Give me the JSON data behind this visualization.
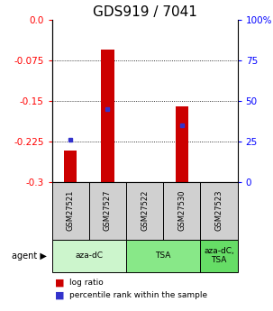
{
  "title": "GDS919 / 7041",
  "samples": [
    "GSM27521",
    "GSM27527",
    "GSM27522",
    "GSM27530",
    "GSM27523"
  ],
  "log_ratio_bottom": [
    -0.3,
    -0.3,
    0.0,
    -0.3,
    0.0
  ],
  "log_ratio_top": [
    -0.242,
    -0.055,
    0.0,
    -0.16,
    0.0
  ],
  "percentile_rank_pct": [
    26,
    45,
    0,
    35,
    0
  ],
  "yticks_left": [
    0.0,
    -0.075,
    -0.15,
    -0.225,
    -0.3
  ],
  "yticks_right": [
    100,
    75,
    50,
    25,
    0
  ],
  "agent_groups": [
    {
      "label": "aza-dC",
      "span": [
        0,
        2
      ],
      "color": "#ccf5cc"
    },
    {
      "label": "TSA",
      "span": [
        2,
        4
      ],
      "color": "#88e888"
    },
    {
      "label": "aza-dC,\nTSA",
      "span": [
        4,
        5
      ],
      "color": "#66dd66"
    }
  ],
  "legend_items": [
    {
      "color": "#cc0000",
      "label": "log ratio"
    },
    {
      "color": "#0000cc",
      "label": "percentile rank within the sample"
    }
  ],
  "bar_width": 0.35,
  "sample_bg_color": "#d0d0d0",
  "bg_color": "#ffffff",
  "title_fontsize": 11,
  "tick_fontsize": 7.5,
  "red_color": "#cc0000",
  "blue_color": "#3333cc"
}
